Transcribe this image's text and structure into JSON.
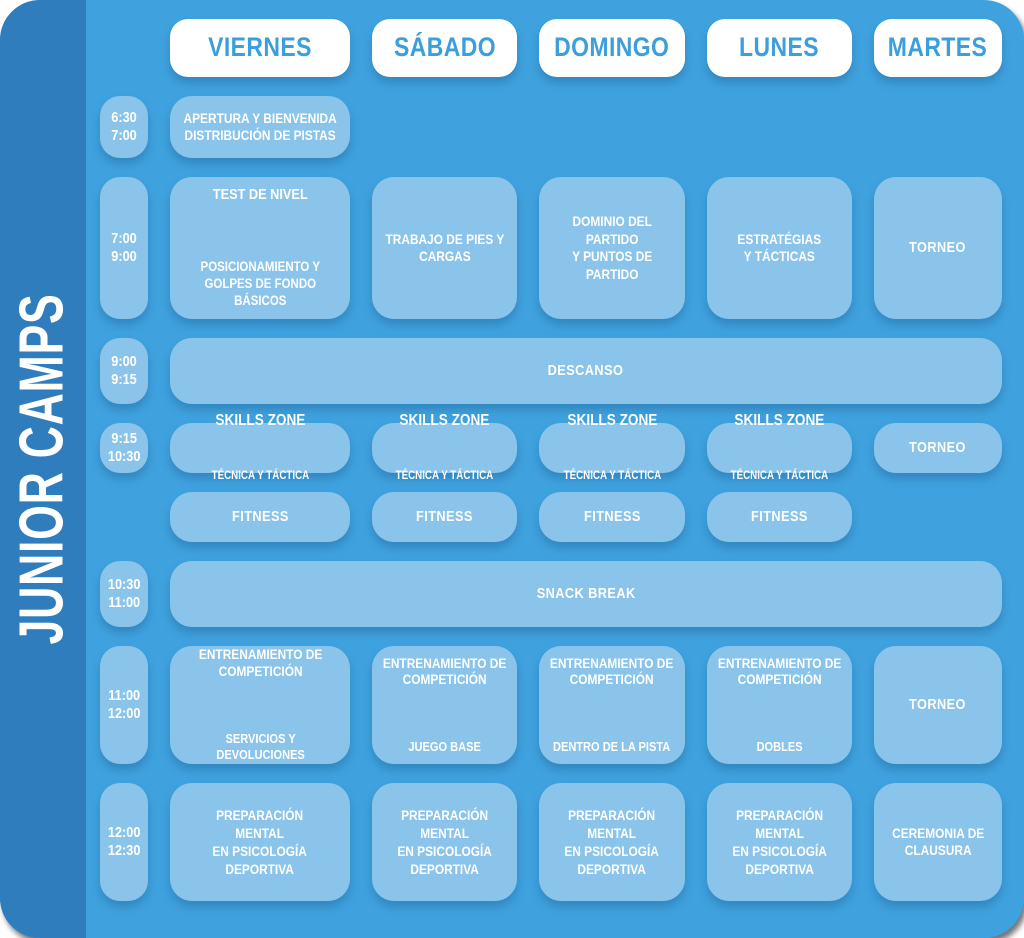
{
  "poster_title": "JUNIOR CAMPS",
  "colors": {
    "background": "#3FA2DE",
    "sidebar": "#2F7DBD",
    "cell": "#8BC4EB",
    "day_pill_background": "#FFFFFF",
    "day_pill_text": "#3C9EDB",
    "cell_text": "#FFFFFF"
  },
  "header": {
    "days": [
      "VIERNES",
      "SÁBADO",
      "DOMINGO",
      "LUNES",
      "MARTES"
    ]
  },
  "schedule": {
    "row1": {
      "time": "6:30\n7:00",
      "viernes": "APERTURA Y BIENVENIDA\nDISTRIBUCIÓN DE PISTAS"
    },
    "row2": {
      "time": "7:00\n9:00",
      "viernes_title": "TEST DE NIVEL",
      "viernes_body": "POSICIONAMIENTO Y\nGOLPES DE FONDO\nBÁSICOS",
      "sabado": "TRABAJO DE PIES Y\nCARGAS",
      "domingo": "DOMINIO DEL\nPARTIDO\nY PUNTOS DE\nPARTIDO",
      "lunes": "ESTRATÉGIAS\nY TÁCTICAS",
      "martes": "TORNEO"
    },
    "row3": {
      "time": "9:00\n9:15",
      "all_days": "DESCANSO"
    },
    "row4": {
      "time": "9:15\n10:30",
      "skills_title": "SKILLS ZONE",
      "skills_subtitle": "TÉCNICA Y TÁCTICA",
      "fitness": "FITNESS",
      "martes": "TORNEO"
    },
    "row5": {
      "time": "10:30\n11:00",
      "all_days": "SNACK BREAK"
    },
    "row6": {
      "time": "11:00\n12:00",
      "title": "ENTRENAMIENTO DE\nCOMPETICIÓN",
      "viernes_sub": "SERVICIOS Y\nDEVOLUCIONES",
      "sabado_sub": "JUEGO BASE",
      "domingo_sub": "DENTRO DE LA PISTA",
      "lunes_sub": "DOBLES",
      "martes": "TORNEO"
    },
    "row7": {
      "time": "12:00\n12:30",
      "mental": "PREPARACIÓN\nMENTAL\nEN PSICOLOGÍA\nDEPORTIVA",
      "martes": "CEREMONIA DE\nCLAUSURA"
    }
  }
}
